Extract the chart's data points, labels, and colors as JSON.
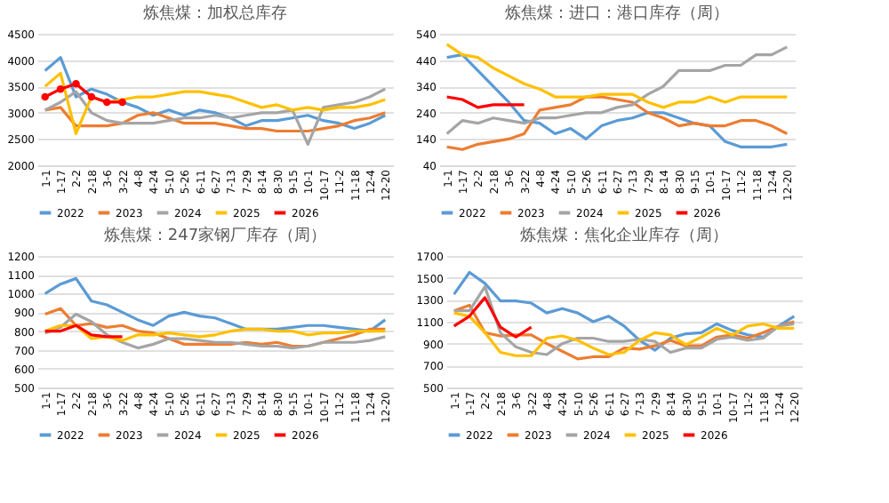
{
  "chart_data": [
    {
      "type": "line",
      "title": "炼焦煤：加权总库存",
      "categories": [
        "1-1",
        "1-17",
        "2-2",
        "2-18",
        "3-6",
        "3-22",
        "4-8",
        "4-24",
        "5-10",
        "5-26",
        "6-11",
        "6-27",
        "7-13",
        "7-29",
        "8-14",
        "8-30",
        "9-15",
        "10-1",
        "10-17",
        "11-2",
        "11-18",
        "12-4",
        "12-20"
      ],
      "ylim": [
        2000,
        4500
      ],
      "yticks": [
        2000,
        2500,
        3000,
        3500,
        4000,
        4500
      ],
      "grid": "y",
      "legend": "bottom",
      "line_style": "solid",
      "series": [
        {
          "name": "2022",
          "color": "#5b9bd5",
          "values": [
            3800,
            4050,
            3300,
            3450,
            3350,
            3200,
            3100,
            2950,
            3050,
            2950,
            3050,
            3000,
            2900,
            2750,
            2850,
            2850,
            2900,
            2950,
            2850,
            2800,
            2700,
            2800,
            2950
          ]
        },
        {
          "name": "2023",
          "color": "#ed7d31",
          "values": [
            3050,
            3100,
            2750,
            2750,
            2750,
            2800,
            2950,
            3000,
            2900,
            2800,
            2800,
            2800,
            2750,
            2700,
            2700,
            2650,
            2650,
            2650,
            2700,
            2750,
            2850,
            2900,
            3000
          ]
        },
        {
          "name": "2024",
          "color": "#a5a5a5",
          "values": [
            3050,
            3200,
            3400,
            3000,
            2850,
            2800,
            2800,
            2800,
            2850,
            2900,
            2900,
            2950,
            2900,
            2950,
            3000,
            3000,
            3050,
            2400,
            3100,
            3150,
            3200,
            3300,
            3450
          ]
        },
        {
          "name": "2025",
          "color": "#ffc000",
          "values": [
            3500,
            3750,
            2600,
            3300,
            3200,
            3250,
            3300,
            3300,
            3350,
            3400,
            3400,
            3350,
            3300,
            3200,
            3100,
            3150,
            3050,
            3100,
            3050,
            3100,
            3100,
            3150,
            3250
          ]
        },
        {
          "name": "2026",
          "color": "#ff0000",
          "marker": "circle",
          "values": [
            3300,
            3450,
            3550,
            3300,
            3200,
            3200,
            null,
            null,
            null,
            null,
            null,
            null,
            null,
            null,
            null,
            null,
            null,
            null,
            null,
            null,
            null,
            null,
            null
          ]
        }
      ]
    },
    {
      "type": "line",
      "title": "炼焦煤：进口：港口库存（周）",
      "categories": [
        "1-1",
        "1-17",
        "2-2",
        "2-18",
        "3-6",
        "3-22",
        "4-8",
        "4-24",
        "5-10",
        "5-26",
        "6-11",
        "6-27",
        "7-13",
        "7-29",
        "8-14",
        "8-30",
        "9-15",
        "10-1",
        "10-17",
        "11-2",
        "11-18",
        "12-4",
        "12-20"
      ],
      "ylim": [
        40,
        540
      ],
      "yticks": [
        40,
        140,
        240,
        340,
        440,
        540
      ],
      "grid": "y",
      "legend": "bottom",
      "line_style": "solid",
      "series": [
        {
          "name": "2022",
          "color": "#5b9bd5",
          "values": [
            450,
            460,
            400,
            340,
            280,
            210,
            200,
            160,
            180,
            140,
            190,
            210,
            220,
            240,
            240,
            220,
            200,
            190,
            130,
            110,
            110,
            110,
            120
          ]
        },
        {
          "name": "2023",
          "color": "#ed7d31",
          "values": [
            110,
            100,
            120,
            130,
            140,
            160,
            250,
            260,
            270,
            300,
            300,
            290,
            280,
            240,
            220,
            190,
            200,
            190,
            190,
            210,
            210,
            190,
            160
          ]
        },
        {
          "name": "2024",
          "color": "#a5a5a5",
          "values": [
            160,
            210,
            200,
            220,
            210,
            200,
            220,
            220,
            230,
            240,
            240,
            260,
            270,
            310,
            340,
            400,
            400,
            400,
            420,
            420,
            460,
            460,
            490
          ]
        },
        {
          "name": "2025",
          "color": "#ffc000",
          "values": [
            500,
            460,
            450,
            410,
            380,
            350,
            330,
            300,
            300,
            300,
            310,
            310,
            310,
            280,
            260,
            280,
            280,
            300,
            280,
            300,
            300,
            300,
            300
          ]
        },
        {
          "name": "2026",
          "color": "#ff0000",
          "values": [
            300,
            290,
            260,
            270,
            270,
            270,
            null,
            null,
            null,
            null,
            null,
            null,
            null,
            null,
            null,
            null,
            null,
            null,
            null,
            null,
            null,
            null,
            null
          ]
        }
      ]
    },
    {
      "type": "line",
      "title": "炼焦煤：247家钢厂库存（周）",
      "categories": [
        "1-1",
        "1-17",
        "2-2",
        "2-18",
        "3-6",
        "3-22",
        "4-8",
        "4-24",
        "5-10",
        "5-26",
        "6-11",
        "6-27",
        "7-13",
        "7-29",
        "8-14",
        "8-30",
        "9-15",
        "10-1",
        "10-17",
        "11-2",
        "11-18",
        "12-4",
        "12-20"
      ],
      "ylim": [
        500,
        1200
      ],
      "yticks": [
        500,
        600,
        700,
        800,
        900,
        1000,
        1100,
        1200
      ],
      "grid": "y",
      "legend": "bottom",
      "line_style": "solid",
      "series": [
        {
          "name": "2022",
          "color": "#5b9bd5",
          "values": [
            1000,
            1050,
            1080,
            960,
            940,
            900,
            860,
            830,
            880,
            900,
            880,
            870,
            840,
            810,
            810,
            810,
            820,
            830,
            830,
            820,
            810,
            800,
            860
          ]
        },
        {
          "name": "2023",
          "color": "#ed7d31",
          "values": [
            890,
            920,
            830,
            840,
            820,
            830,
            800,
            790,
            760,
            730,
            730,
            730,
            730,
            740,
            730,
            740,
            720,
            720,
            740,
            760,
            780,
            810,
            810
          ]
        },
        {
          "name": "2024",
          "color": "#a5a5a5",
          "values": [
            790,
            820,
            890,
            850,
            780,
            740,
            710,
            730,
            760,
            760,
            750,
            740,
            740,
            730,
            720,
            720,
            710,
            720,
            740,
            740,
            740,
            750,
            770
          ]
        },
        {
          "name": "2025",
          "color": "#ffc000",
          "values": [
            800,
            830,
            830,
            760,
            770,
            750,
            780,
            780,
            790,
            780,
            770,
            780,
            800,
            810,
            810,
            800,
            800,
            780,
            790,
            790,
            800,
            800,
            800
          ]
        },
        {
          "name": "2026",
          "color": "#ff0000",
          "values": [
            800,
            800,
            830,
            780,
            770,
            770,
            null,
            null,
            null,
            null,
            null,
            null,
            null,
            null,
            null,
            null,
            null,
            null,
            null,
            null,
            null,
            null,
            null
          ]
        }
      ]
    },
    {
      "type": "line",
      "title": "炼焦煤：焦化企业库存（周）",
      "categories": [
        "1-1",
        "1-17",
        "2-2",
        "2-18",
        "3-6",
        "3-22",
        "4-8",
        "4-24",
        "5-10",
        "5-26",
        "6-11",
        "6-27",
        "7-13",
        "7-29",
        "8-14",
        "8-30",
        "9-15",
        "10-1",
        "10-17",
        "11-2",
        "11-18",
        "12-4",
        "12-20"
      ],
      "ylim": [
        500,
        1700
      ],
      "yticks": [
        500,
        700,
        900,
        1100,
        1300,
        1500,
        1700
      ],
      "grid": "y",
      "legend": "bottom",
      "line_style": "solid",
      "series": [
        {
          "name": "2022",
          "color": "#5b9bd5",
          "values": [
            1350,
            1550,
            1450,
            1290,
            1290,
            1270,
            1180,
            1220,
            1180,
            1100,
            1150,
            1060,
            930,
            840,
            950,
            990,
            1000,
            1080,
            1020,
            980,
            960,
            1060,
            1150
          ]
        },
        {
          "name": "2023",
          "color": "#ed7d31",
          "values": [
            1200,
            1250,
            1000,
            970,
            980,
            980,
            900,
            830,
            760,
            780,
            780,
            860,
            850,
            880,
            930,
            880,
            880,
            960,
            980,
            950,
            1000,
            1060,
            1100
          ]
        },
        {
          "name": "2024",
          "color": "#a5a5a5",
          "values": [
            1200,
            1200,
            1420,
            1000,
            870,
            820,
            800,
            900,
            950,
            950,
            920,
            920,
            940,
            920,
            820,
            860,
            860,
            940,
            960,
            930,
            950,
            1060,
            1080
          ]
        },
        {
          "name": "2025",
          "color": "#ffc000",
          "values": [
            1180,
            1150,
            1000,
            820,
            790,
            790,
            950,
            970,
            930,
            860,
            800,
            820,
            930,
            1000,
            980,
            890,
            960,
            1040,
            980,
            1060,
            1080,
            1040,
            1040
          ]
        },
        {
          "name": "2026",
          "color": "#ff0000",
          "values": [
            1060,
            1150,
            1320,
            1050,
            960,
            1050,
            null,
            null,
            null,
            null,
            null,
            null,
            null,
            null,
            null,
            null,
            null,
            null,
            null,
            null,
            null,
            null,
            null
          ]
        }
      ]
    }
  ]
}
